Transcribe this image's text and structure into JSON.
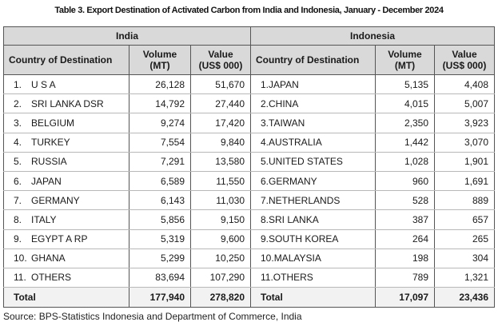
{
  "title": "Table 3. Export Destination of Activated Carbon from India and Indonesia, January - December 2024",
  "headers": {
    "india": "India",
    "indonesia": "Indonesia",
    "country_of_destination": "Country of Destination",
    "volume_line1": "Volume",
    "volume_line2": "(MT)",
    "value_line1": "Value",
    "value_line2": "(US$ 000)"
  },
  "india_rows": [
    {
      "rank": "1.",
      "country": "U S A",
      "volume": "26,128",
      "value": "51,670"
    },
    {
      "rank": "2.",
      "country": "SRI LANKA DSR",
      "volume": "14,792",
      "value": "27,440"
    },
    {
      "rank": "3.",
      "country": "BELGIUM",
      "volume": "9,274",
      "value": "17,420"
    },
    {
      "rank": "4.",
      "country": "TURKEY",
      "volume": "7,554",
      "value": "9,840"
    },
    {
      "rank": "5.",
      "country": "RUSSIA",
      "volume": "7,291",
      "value": "13,580"
    },
    {
      "rank": "6.",
      "country": "JAPAN",
      "volume": "6,589",
      "value": "11,550"
    },
    {
      "rank": "7.",
      "country": "GERMANY",
      "volume": "6,143",
      "value": "11,030"
    },
    {
      "rank": "8.",
      "country": "ITALY",
      "volume": "5,856",
      "value": "9,150"
    },
    {
      "rank": "9.",
      "country": "EGYPT A RP",
      "volume": "5,319",
      "value": "9,600"
    },
    {
      "rank": "10.",
      "country": "GHANA",
      "volume": "5,299",
      "value": "10,250"
    },
    {
      "rank": "11.",
      "country": "OTHERS",
      "volume": "83,694",
      "value": "107,290"
    }
  ],
  "indonesia_rows": [
    {
      "rank": "1.",
      "country": "JAPAN",
      "volume": "5,135",
      "value": "4,408"
    },
    {
      "rank": "2.",
      "country": "CHINA",
      "volume": "4,015",
      "value": "5,007"
    },
    {
      "rank": "3.",
      "country": "TAIWAN",
      "volume": "2,350",
      "value": "3,923"
    },
    {
      "rank": "4.",
      "country": "AUSTRALIA",
      "volume": "1,442",
      "value": "3,070"
    },
    {
      "rank": "5.",
      "country": "UNITED STATES",
      "volume": "1,028",
      "value": "1,901"
    },
    {
      "rank": "6.",
      "country": "GERMANY",
      "volume": "960",
      "value": "1,691"
    },
    {
      "rank": "7.",
      "country": "NETHERLANDS",
      "volume": "528",
      "value": "889"
    },
    {
      "rank": "8.",
      "country": "SRI LANKA",
      "volume": "387",
      "value": "657"
    },
    {
      "rank": "9.",
      "country": "SOUTH KOREA",
      "volume": "264",
      "value": "265"
    },
    {
      "rank": "10.",
      "country": "MALAYSIA",
      "volume": "198",
      "value": "304"
    },
    {
      "rank": "11.",
      "country": "OTHERS",
      "volume": "789",
      "value": "1,321"
    }
  ],
  "totals": {
    "label": "Total",
    "india_volume": "177,940",
    "india_value": "278,820",
    "indonesia_volume": "17,097",
    "indonesia_value": "23,436"
  },
  "source": "Source: BPS-Statistics Indonesia and Department of Commerce, India"
}
